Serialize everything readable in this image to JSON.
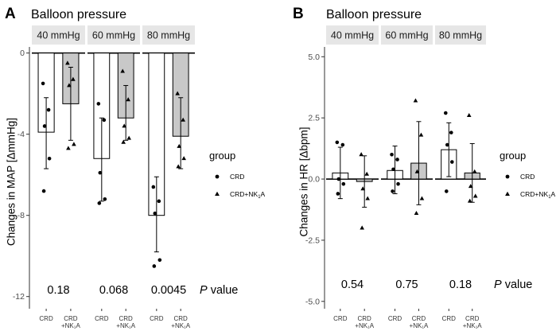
{
  "figure": {
    "panels": [
      {
        "letter": "A",
        "title": "Balloon pressure",
        "ylabel": "Changes in MAP [ΔmmHg]",
        "p_label": "P",
        "p_label_suffix": " value"
      },
      {
        "letter": "B",
        "title": "Balloon pressure",
        "ylabel": "Changes in HR [Δbpm]",
        "p_label": "P",
        "p_label_suffix": " value"
      }
    ],
    "legend": {
      "title": "group",
      "entries": [
        {
          "label": "CRD",
          "label_base": "CRD",
          "label_sub": "",
          "label_tail": ""
        },
        {
          "label": "CRD+NK₁A",
          "label_base": "CRD+NK",
          "label_sub": "1",
          "label_tail": "A"
        }
      ]
    },
    "colors": {
      "crd_fill": "#ffffff",
      "nk_fill": "#c8c8c8",
      "strip": "#e6e6e6"
    }
  },
  "chart_data": [
    {
      "type": "bar",
      "panel": "A",
      "title": "Balloon pressure",
      "ylabel": "Changes in MAP [ΔmmHg]",
      "xlabel": "",
      "ylim": [
        -12.6,
        0.3
      ],
      "yticks": [
        0,
        -4,
        -8,
        -12
      ],
      "ytick_labels": [
        "0",
        "-4",
        "-8",
        "-12"
      ],
      "facets": [
        "40 mmHg",
        "60 mmHg",
        "80 mmHg"
      ],
      "categories": [
        "CRD",
        "CRD\n+NK₁A"
      ],
      "p_values": [
        "0.18",
        "0.068",
        "0.0045"
      ],
      "series": [
        {
          "name": "CRD",
          "marker": "circle",
          "means": [
            -3.9,
            -5.2,
            -8.0
          ],
          "err_low": [
            -5.7,
            -7.3,
            -9.8
          ],
          "err_high": [
            -2.2,
            -3.2,
            -6.1
          ],
          "points": [
            [
              -1.5,
              -2.8,
              -3.6,
              -5.2,
              -6.8
            ],
            [
              -2.5,
              -3.3,
              -5.9,
              -7.2,
              -7.4
            ],
            [
              -6.6,
              -7.3,
              -7.9,
              -10.2,
              -10.5
            ]
          ]
        },
        {
          "name": "CRD+NK₁A",
          "marker": "triangle",
          "means": [
            -2.5,
            -3.2,
            -4.1
          ],
          "err_low": [
            -4.3,
            -4.3,
            -5.7
          ],
          "err_high": [
            -0.7,
            -1.6,
            -2.2
          ],
          "points": [
            [
              -0.5,
              -1.3,
              -1.6,
              -4.5,
              -4.7
            ],
            [
              -0.9,
              -2.3,
              -3.6,
              -4.2,
              -4.4
            ],
            [
              -2.0,
              -3.3,
              -4.6,
              -5.2,
              -5.6
            ]
          ]
        }
      ]
    },
    {
      "type": "bar",
      "panel": "B",
      "title": "Balloon pressure",
      "ylabel": "Changes in HR [Δbpm]",
      "xlabel": "",
      "ylim": [
        -5.3,
        5.4
      ],
      "yticks": [
        5.0,
        2.5,
        0.0,
        -2.5,
        -5.0
      ],
      "ytick_labels": [
        "5.0",
        "2.5",
        "0.0",
        "-2.5",
        "-5.0"
      ],
      "facets": [
        "40 mmHg",
        "60 mmHg",
        "80 mmHg"
      ],
      "categories": [
        "CRD",
        "CRD\n+NK₁A"
      ],
      "p_values": [
        "0.54",
        "0.75",
        "0.18"
      ],
      "series": [
        {
          "name": "CRD",
          "marker": "circle",
          "means": [
            0.25,
            0.35,
            1.2
          ],
          "err_low": [
            -0.8,
            -0.6,
            0.1
          ],
          "err_high": [
            1.3,
            1.35,
            2.3
          ],
          "points": [
            [
              1.5,
              1.4,
              0.0,
              -0.2,
              -0.6
            ],
            [
              1.0,
              0.8,
              0.4,
              -0.2,
              -0.5
            ],
            [
              2.7,
              1.9,
              1.4,
              0.7,
              -0.5
            ]
          ]
        },
        {
          "name": "CRD+NK₁A",
          "marker": "triangle",
          "means": [
            -0.1,
            0.65,
            0.25
          ],
          "err_low": [
            -1.15,
            -1.05,
            -0.95
          ],
          "err_high": [
            0.95,
            2.35,
            1.45
          ],
          "points": [
            [
              1.0,
              0.2,
              -0.4,
              -0.8,
              -2.0
            ],
            [
              3.2,
              1.8,
              0.3,
              -0.8,
              -1.4
            ],
            [
              2.6,
              0.3,
              -0.3,
              -0.7,
              -0.9
            ]
          ]
        }
      ]
    }
  ]
}
